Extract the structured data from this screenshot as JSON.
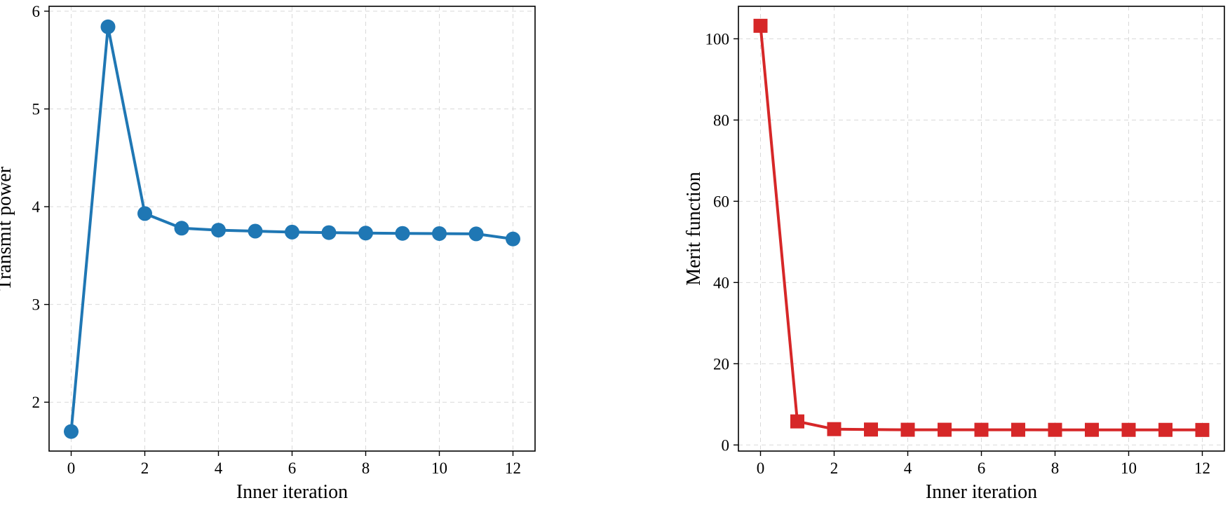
{
  "chart_data": [
    {
      "type": "line",
      "xlabel": "Inner iteration",
      "ylabel": "Transmit power",
      "xlim": [
        -0.6,
        12.6
      ],
      "ylim": [
        1.5,
        6.05
      ],
      "xticks": [
        0,
        2,
        4,
        6,
        8,
        10,
        12
      ],
      "yticks": [
        2,
        3,
        4,
        5,
        6
      ],
      "grid": true,
      "marker": "circle",
      "color": "#1f77b4",
      "series": [
        {
          "x": [
            0,
            1,
            2,
            3,
            4,
            5,
            6,
            7,
            8,
            9,
            10,
            11,
            12
          ],
          "values": [
            1.7,
            5.84,
            3.93,
            3.78,
            3.76,
            3.75,
            3.74,
            3.735,
            3.73,
            3.727,
            3.725,
            3.722,
            3.67
          ]
        }
      ]
    },
    {
      "type": "line",
      "xlabel": "Inner iteration",
      "ylabel": "Merit function",
      "xlim": [
        -0.6,
        12.6
      ],
      "ylim": [
        -1.5,
        108
      ],
      "xticks": [
        0,
        2,
        4,
        6,
        8,
        10,
        12
      ],
      "yticks": [
        0,
        20,
        40,
        60,
        80,
        100
      ],
      "grid": true,
      "marker": "square",
      "color": "#d62728",
      "series": [
        {
          "x": [
            0,
            1,
            2,
            3,
            4,
            5,
            6,
            7,
            8,
            9,
            10,
            11,
            12
          ],
          "values": [
            103.2,
            5.8,
            3.9,
            3.8,
            3.75,
            3.75,
            3.74,
            3.74,
            3.73,
            3.73,
            3.72,
            3.72,
            3.7
          ]
        }
      ]
    }
  ]
}
